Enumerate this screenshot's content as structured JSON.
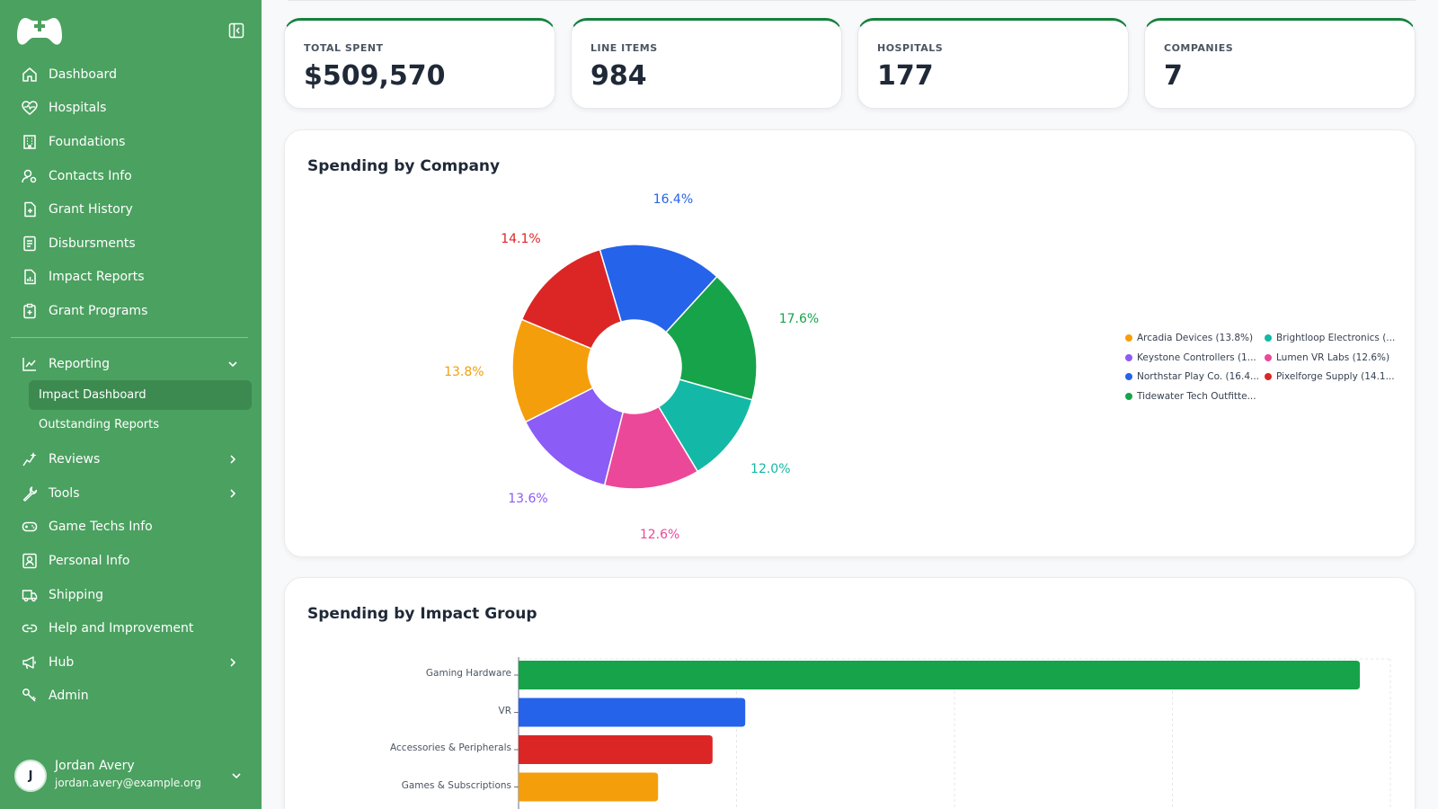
{
  "sidebar": {
    "items": [
      {
        "label": "Dashboard",
        "icon": "home-icon"
      },
      {
        "label": "Hospitals",
        "icon": "heart-pulse-icon"
      },
      {
        "label": "Foundations",
        "icon": "building-icon"
      },
      {
        "label": "Contacts Info",
        "icon": "user-cog-icon"
      },
      {
        "label": "Grant History",
        "icon": "file-plus-icon"
      },
      {
        "label": "Disbursments",
        "icon": "list-file-icon"
      },
      {
        "label": "Impact Reports",
        "icon": "file-chart-icon"
      },
      {
        "label": "Grant Programs",
        "icon": "clipboard-plus-icon"
      }
    ],
    "reporting": {
      "label": "Reporting",
      "sub_items": [
        "Impact Dashboard",
        "Outstanding Reports"
      ]
    },
    "items2": [
      {
        "label": "Reviews",
        "icon": "sparkle-chart-icon",
        "chevron": true
      },
      {
        "label": "Tools",
        "icon": "wrench-icon",
        "chevron": true
      },
      {
        "label": "Game Techs Info",
        "icon": "gamepad-icon",
        "chevron": false
      },
      {
        "label": "Personal Info",
        "icon": "id-card-icon",
        "chevron": false
      },
      {
        "label": "Shipping",
        "icon": "truck-icon",
        "chevron": false
      },
      {
        "label": "Help and Improvement",
        "icon": "link-icon",
        "chevron": false
      },
      {
        "label": "Hub",
        "icon": "megaphone-icon",
        "chevron": true
      },
      {
        "label": "Admin",
        "icon": "admin-icon",
        "chevron": false
      }
    ],
    "user": {
      "initial": "J",
      "name": "Jordan Avery",
      "email": "jordan.avery@example.org"
    }
  },
  "stats": [
    {
      "label": "TOTAL SPENT",
      "value": "$509,570"
    },
    {
      "label": "LINE ITEMS",
      "value": "984"
    },
    {
      "label": "HOSPITALS",
      "value": "177"
    },
    {
      "label": "COMPANIES",
      "value": "7"
    }
  ],
  "colors": {
    "sidebar": "#4ba160",
    "accent": "#15803d"
  },
  "chart_data": [
    {
      "type": "pie",
      "title": "Spending by Company",
      "donut": true,
      "slices": [
        {
          "name": "Northstar Play Co. (16.4...",
          "value": 16.4,
          "label": "16.4%",
          "color": "#2563eb"
        },
        {
          "name": "Tidewater Tech Outfitte...",
          "value": 17.6,
          "label": "17.6%",
          "color": "#16a34a"
        },
        {
          "name": "Brightloop Electronics (...",
          "value": 12.0,
          "label": "12.0%",
          "color": "#14b8a6"
        },
        {
          "name": "Lumen VR Labs (12.6%)",
          "value": 12.6,
          "label": "12.6%",
          "color": "#ec4899"
        },
        {
          "name": "Keystone Controllers (1...",
          "value": 13.6,
          "label": "13.6%",
          "color": "#8b5cf6"
        },
        {
          "name": "Arcadia Devices (13.8%)",
          "value": 13.8,
          "label": "13.8%",
          "color": "#f59e0b"
        },
        {
          "name": "Pixelforge Supply (14.1...",
          "value": 14.1,
          "label": "14.1%",
          "color": "#dc2626"
        }
      ],
      "legend": [
        {
          "name": "Arcadia Devices (13.8%)",
          "color": "#f59e0b"
        },
        {
          "name": "Brightloop Electronics (...",
          "color": "#14b8a6"
        },
        {
          "name": "Keystone Controllers (1...",
          "color": "#8b5cf6"
        },
        {
          "name": "Lumen VR Labs (12.6%)",
          "color": "#ec4899"
        },
        {
          "name": "Northstar Play Co. (16.4...",
          "color": "#2563eb"
        },
        {
          "name": "Pixelforge Supply (14.1...",
          "color": "#dc2626"
        },
        {
          "name": "Tidewater Tech Outfitte...",
          "color": "#16a34a"
        }
      ],
      "legend_placement": "right"
    },
    {
      "type": "bar",
      "orientation": "horizontal",
      "title": "Spending by Impact Group",
      "categories": [
        "Gaming Hardware",
        "VR",
        "Accessories & Peripherals",
        "Games & Subscriptions"
      ],
      "values": [
        193000,
        52000,
        44500,
        32000
      ],
      "colors": [
        "#16a34a",
        "#2563eb",
        "#dc2626",
        "#f59e0b"
      ],
      "xlim": [
        0,
        200000
      ],
      "grid": true
    }
  ]
}
